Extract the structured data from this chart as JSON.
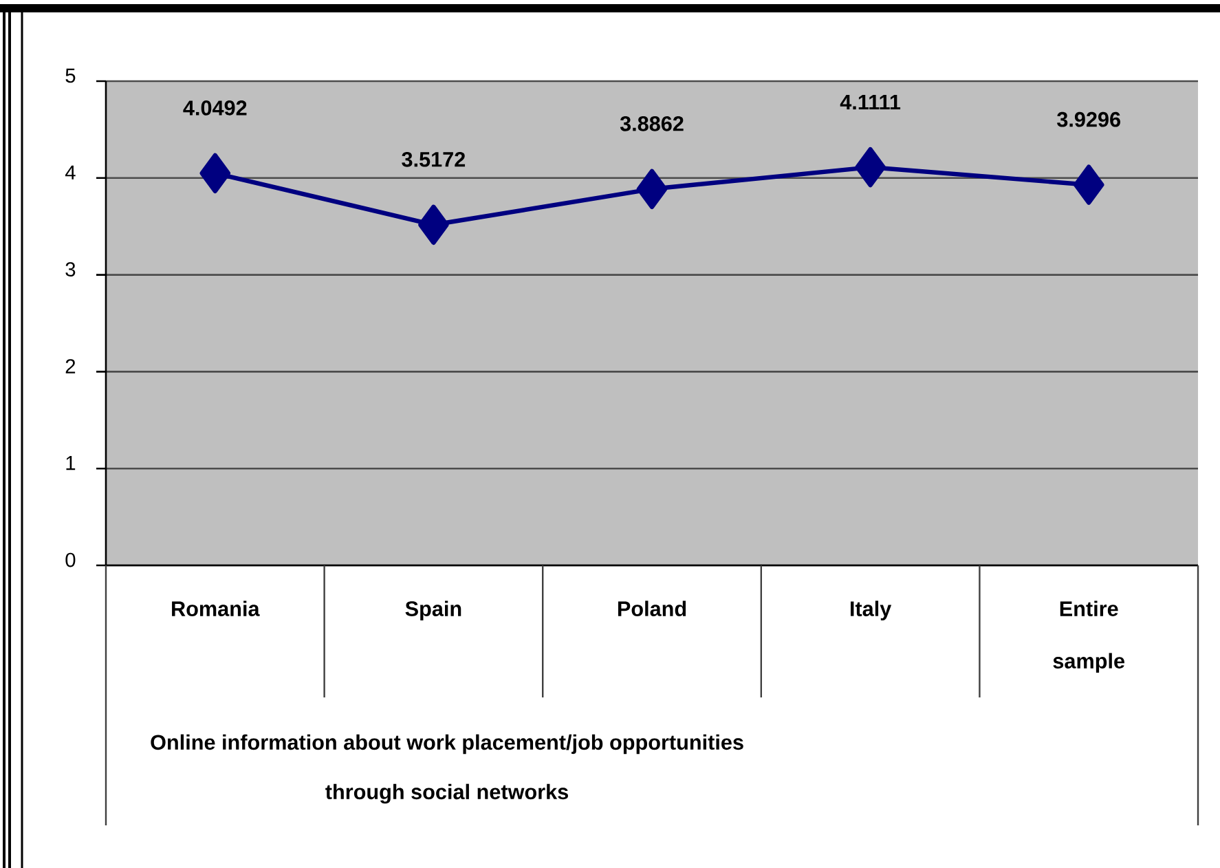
{
  "chart_data": {
    "type": "line",
    "categories": [
      "Romania",
      "Spain",
      "Poland",
      "Italy",
      "Entire sample"
    ],
    "values": [
      4.0492,
      3.5172,
      3.8862,
      4.1111,
      3.9296
    ],
    "color": "#000080",
    "xlabel": "Online information about work placement/job opportunities through social networks",
    "ylim": [
      0,
      5
    ],
    "yticks": [
      0,
      1,
      2,
      3,
      4,
      5
    ],
    "grid": "y",
    "marker": "diamond",
    "line_style": "solid",
    "data_labels": true
  }
}
